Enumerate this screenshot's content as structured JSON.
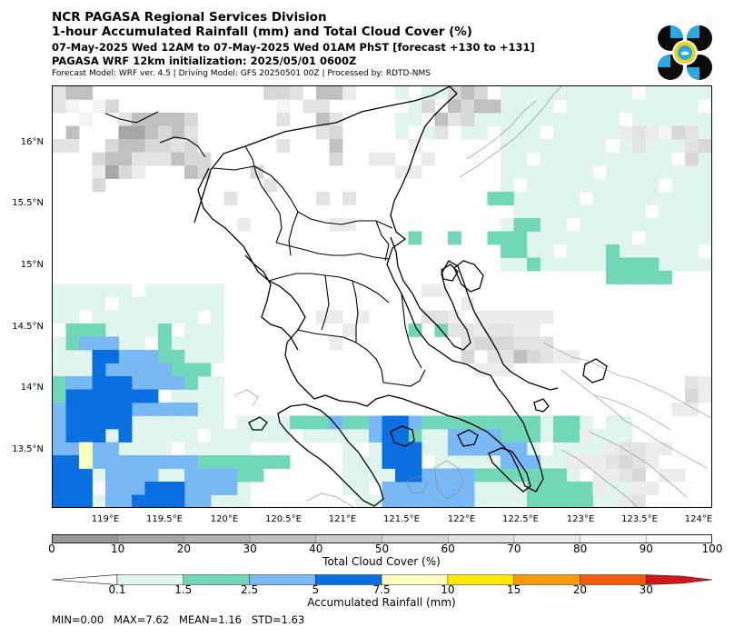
{
  "header": {
    "line1": "NCR PAGASA Regional Services Division",
    "line2": "1-hour Accumulated Rainfall (mm) and Total Cloud Cover (%)",
    "line3": "07-May-2025 Wed 12AM to 07-May-2025 Wed 01AM PhST [forecast +130 to +131]",
    "line4": "PAGASA WRF 12km initialization: 2025/05/01 0600Z",
    "line5": "Forecast Model: WRF ver. 4.5 | Driving Model: GFS 20250501 00Z | Processed by: RDTD-NMS"
  },
  "map": {
    "lat_labels": [
      "16°N",
      "15.5°N",
      "15°N",
      "14.5°N",
      "14°N",
      "13.5°N"
    ],
    "lon_labels": [
      "119°E",
      "119.5°E",
      "120°E",
      "120.5°E",
      "121°E",
      "121.5°E",
      "122°E",
      "122.5°E",
      "123°E",
      "123.5°E",
      "124°E"
    ]
  },
  "cloud_bar": {
    "ticks": [
      "0",
      "10",
      "20",
      "30",
      "40",
      "50",
      "60",
      "70",
      "80",
      "90",
      "100"
    ],
    "label": "Total Cloud Cover (%)",
    "colors": [
      "#999999",
      "#a6a6a6",
      "#b3b3b3",
      "#c0c0c0",
      "#cccccc",
      "#d8d8d8",
      "#e3e3e3",
      "#ececec",
      "#f4f4f4",
      "#fbfbfb"
    ]
  },
  "rain_bar": {
    "ticks": [
      "0.1",
      "1.5",
      "2.5",
      "5",
      "7.5",
      "10",
      "15",
      "20",
      "30"
    ],
    "label": "Accumulated Rainfall (mm)",
    "colors": [
      "#e0f5ee",
      "#70d8b8",
      "#78b8f4",
      "#0a6fe0",
      "#ffffbe",
      "#ffe800",
      "#f79a12",
      "#f25a0c",
      "#cc1a1a"
    ]
  },
  "stats": "MIN=0.00   MAX=7.62   MEAN=1.16   STD=1.63"
}
